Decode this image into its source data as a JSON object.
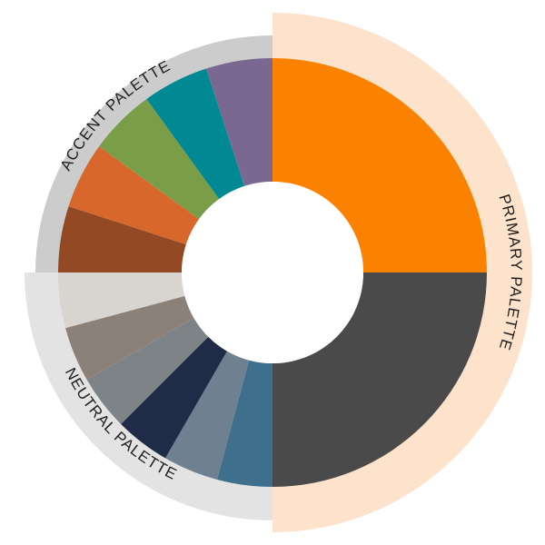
{
  "palette_wheel": {
    "background_color": "#ffffff",
    "center_color": "#ffffff",
    "bands": [
      {
        "id": "primary",
        "label": "PRIMARY PALETTE",
        "band_color": "#fde3cb",
        "swatches": [
          {
            "name": "orange",
            "color": "#fb8200"
          },
          {
            "name": "charcoal",
            "color": "#4a4a4a"
          }
        ]
      },
      {
        "id": "neutral",
        "label": "NEUTRAL PALETTE",
        "band_color": "#e3e3e3",
        "swatches": [
          {
            "name": "steel-blue",
            "color": "#3e6f8c"
          },
          {
            "name": "slate-gray",
            "color": "#6f8090"
          },
          {
            "name": "navy",
            "color": "#1f2b47"
          },
          {
            "name": "gray",
            "color": "#7d8387"
          },
          {
            "name": "taupe",
            "color": "#8b8178"
          },
          {
            "name": "light-stone",
            "color": "#d8d4cf"
          }
        ]
      },
      {
        "id": "accent",
        "label": "ACCENT PALETTE",
        "band_color": "#cccccc",
        "swatches": [
          {
            "name": "rust",
            "color": "#934a24"
          },
          {
            "name": "burnt-orange",
            "color": "#d8672b"
          },
          {
            "name": "olive-green",
            "color": "#7a9d48"
          },
          {
            "name": "teal",
            "color": "#008893"
          },
          {
            "name": "purple",
            "color": "#7b6891"
          }
        ]
      }
    ]
  }
}
